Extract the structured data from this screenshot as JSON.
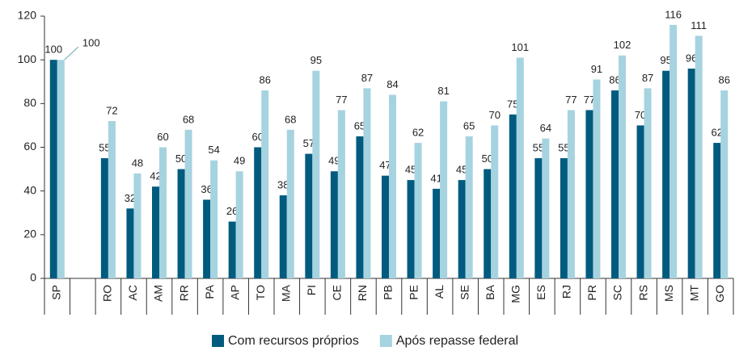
{
  "chart_data": {
    "type": "bar",
    "categories": [
      "SP",
      null,
      "RO",
      "AC",
      "AM",
      "RR",
      "PA",
      "AP",
      "TO",
      "MA",
      "PI",
      "CE",
      "RN",
      "PB",
      "PE",
      "AL",
      "SE",
      "BA",
      "MG",
      "ES",
      "RJ",
      "PR",
      "SC",
      "RS",
      "MS",
      "MT",
      "GO"
    ],
    "series": [
      {
        "name": "Com recursos próprios",
        "color": "#005b7f",
        "values": [
          100,
          null,
          55,
          32,
          42,
          50,
          36,
          26,
          60,
          38,
          57,
          49,
          65,
          47,
          45,
          41,
          45,
          50,
          75,
          55,
          55,
          77,
          86,
          70,
          95,
          96,
          62
        ]
      },
      {
        "name": "Após repasse federal",
        "color": "#a6d3e0",
        "values": [
          100,
          null,
          72,
          48,
          60,
          68,
          54,
          49,
          86,
          68,
          95,
          77,
          87,
          84,
          62,
          81,
          65,
          70,
          101,
          64,
          77,
          91,
          102,
          87,
          116,
          111,
          86
        ]
      }
    ],
    "ylim": [
      0,
      120
    ],
    "yticks": [
      0,
      20,
      40,
      60,
      80,
      100,
      120
    ]
  }
}
